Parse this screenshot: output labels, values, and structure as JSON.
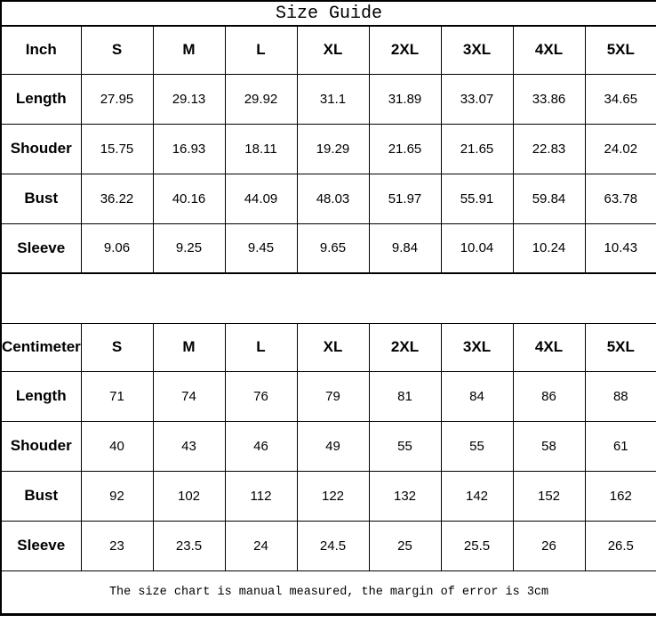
{
  "title": "Size Guide",
  "footer_note": "The size chart is manual measured, the margin of error is 3cm",
  "colors": {
    "background": "#ffffff",
    "border": "#000000",
    "text": "#000000"
  },
  "tables": [
    {
      "unit_label": "Inch",
      "size_headers": [
        "S",
        "M",
        "L",
        "XL",
        "2XL",
        "3XL",
        "4XL",
        "5XL"
      ],
      "rows": [
        {
          "label": "Length",
          "values": [
            "27.95",
            "29.13",
            "29.92",
            "31.1",
            "31.89",
            "33.07",
            "33.86",
            "34.65"
          ]
        },
        {
          "label": "Shouder",
          "values": [
            "15.75",
            "16.93",
            "18.11",
            "19.29",
            "21.65",
            "21.65",
            "22.83",
            "24.02"
          ]
        },
        {
          "label": "Bust",
          "values": [
            "36.22",
            "40.16",
            "44.09",
            "48.03",
            "51.97",
            "55.91",
            "59.84",
            "63.78"
          ]
        },
        {
          "label": "Sleeve",
          "values": [
            "9.06",
            "9.25",
            "9.45",
            "9.65",
            "9.84",
            "10.04",
            "10.24",
            "10.43"
          ]
        }
      ]
    },
    {
      "unit_label": "Centimeter",
      "size_headers": [
        "S",
        "M",
        "L",
        "XL",
        "2XL",
        "3XL",
        "4XL",
        "5XL"
      ],
      "rows": [
        {
          "label": "Length",
          "values": [
            "71",
            "74",
            "76",
            "79",
            "81",
            "84",
            "86",
            "88"
          ]
        },
        {
          "label": "Shouder",
          "values": [
            "40",
            "43",
            "46",
            "49",
            "55",
            "55",
            "58",
            "61"
          ]
        },
        {
          "label": "Bust",
          "values": [
            "92",
            "102",
            "112",
            "122",
            "132",
            "142",
            "152",
            "162"
          ]
        },
        {
          "label": "Sleeve",
          "values": [
            "23",
            "23.5",
            "24",
            "24.5",
            "25",
            "25.5",
            "26",
            "26.5"
          ]
        }
      ]
    }
  ]
}
